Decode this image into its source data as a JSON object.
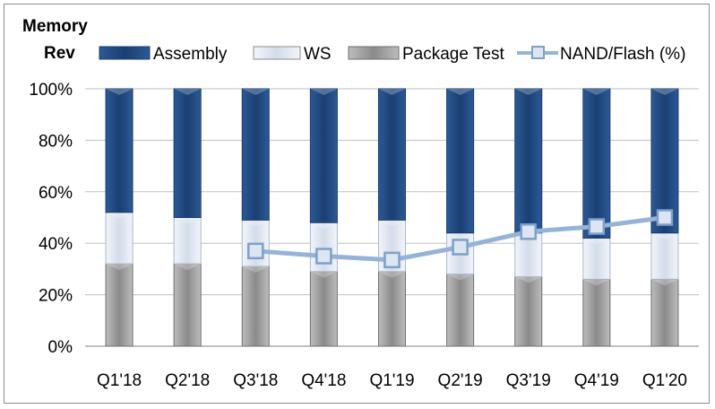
{
  "chart_data": {
    "type": "bar",
    "stacked": true,
    "title_line1": "Memory",
    "title_line2": "Rev",
    "categories": [
      "Q1'18",
      "Q2'18",
      "Q3'18",
      "Q4'18",
      "Q1'19",
      "Q2'19",
      "Q3'19",
      "Q4'19",
      "Q1'20"
    ],
    "series": [
      {
        "name": "Package Test",
        "kind": "bar",
        "color": "#a6a6a6",
        "values": [
          32,
          32,
          31,
          29,
          29,
          28,
          27,
          26,
          26
        ]
      },
      {
        "name": "WS",
        "kind": "bar",
        "color": "#e4e9f2",
        "values": [
          20,
          18,
          18,
          19,
          20,
          16,
          17,
          16,
          18
        ]
      },
      {
        "name": "Assembly",
        "kind": "bar",
        "color": "#1f4e8a",
        "values": [
          48,
          50,
          51,
          52,
          51,
          56,
          56,
          58,
          56
        ]
      },
      {
        "name": "NAND/Flash (%)",
        "kind": "line",
        "color": "#95b3d7",
        "values": [
          null,
          null,
          37,
          35,
          33.5,
          38.5,
          44.5,
          46.5,
          50
        ]
      }
    ],
    "legend_order": [
      "Assembly",
      "WS",
      "Package Test",
      "NAND/Flash (%)"
    ],
    "ylim": [
      0,
      100
    ],
    "y_ticks": [
      "0%",
      "20%",
      "40%",
      "60%",
      "80%",
      "100%"
    ],
    "grid": true,
    "legend_position": "top"
  }
}
